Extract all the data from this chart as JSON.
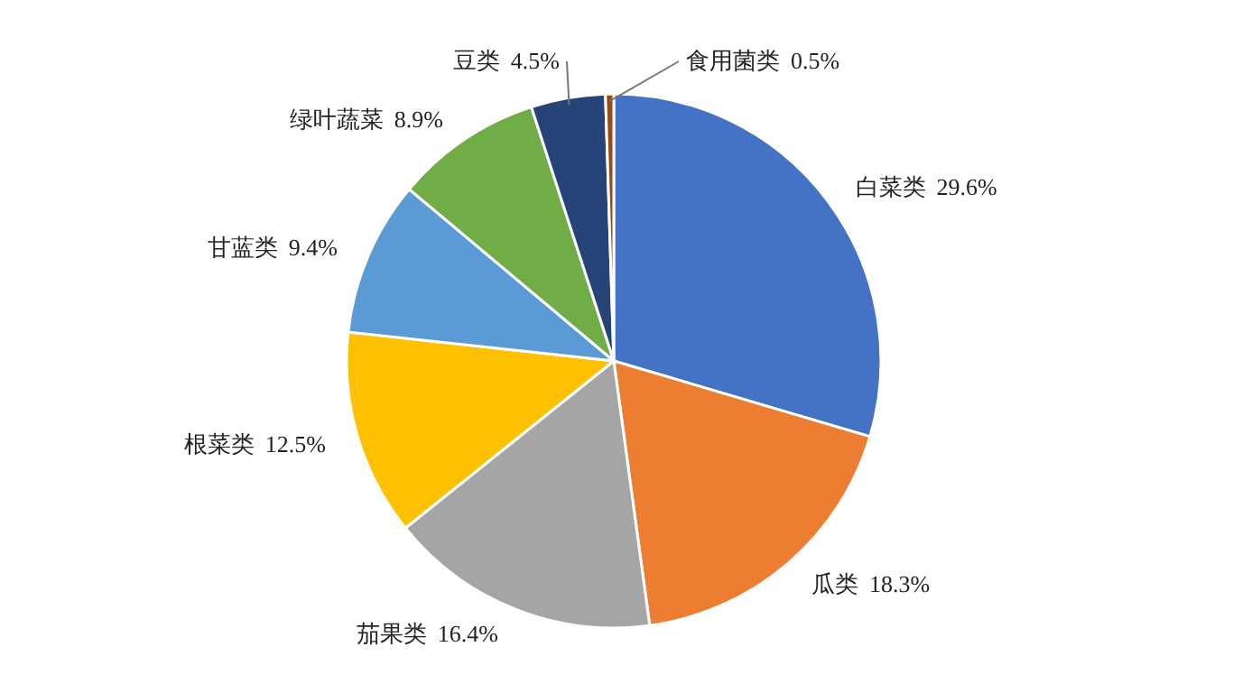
{
  "chart_data": {
    "type": "pie",
    "categories": [
      "白菜类",
      "瓜类",
      "茄果类",
      "根菜类",
      "甘蓝类",
      "绿叶蔬菜",
      "豆类",
      "食用菌类"
    ],
    "values": [
      29.6,
      18.3,
      16.4,
      12.5,
      9.4,
      8.9,
      4.5,
      0.5
    ],
    "value_labels": [
      "29.6%",
      "18.3%",
      "16.4%",
      "12.5%",
      "9.4%",
      "8.9%",
      "4.5%",
      "0.5%"
    ],
    "colors": [
      "#4472c4",
      "#ed7d31",
      "#a5a5a5",
      "#ffc000",
      "#5b9bd5",
      "#70ad47",
      "#264478",
      "#9e480e"
    ]
  }
}
